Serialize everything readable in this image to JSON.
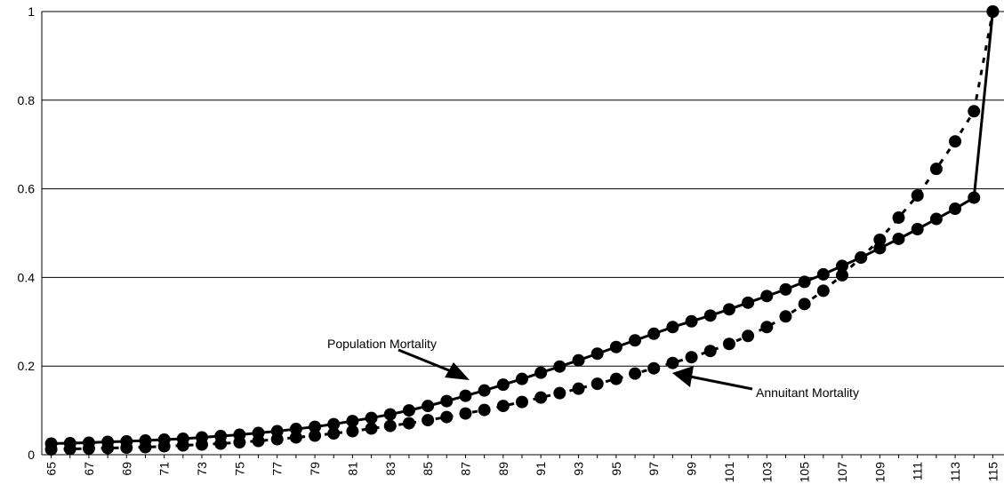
{
  "chart_data": {
    "type": "line",
    "categories": [
      "65",
      null,
      "67",
      null,
      "69",
      null,
      "71",
      null,
      "73",
      null,
      "75",
      null,
      "77",
      null,
      "79",
      null,
      "81",
      null,
      "83",
      null,
      "85",
      null,
      "87",
      null,
      "89",
      null,
      "91",
      null,
      "93",
      null,
      "95",
      null,
      "97",
      null,
      "99",
      null,
      "101",
      null,
      "103",
      null,
      "105",
      null,
      "107",
      null,
      "109",
      null,
      "111",
      null,
      "113",
      null,
      "115"
    ],
    "series": [
      {
        "name": "Population Mortality",
        "color": "#000000",
        "line_style": "solid",
        "values": [
          0.025,
          0.026,
          0.027,
          0.029,
          0.03,
          0.032,
          0.034,
          0.036,
          0.039,
          0.042,
          0.045,
          0.049,
          0.053,
          0.058,
          0.063,
          0.069,
          0.076,
          0.083,
          0.091,
          0.1,
          0.11,
          0.121,
          0.133,
          0.145,
          0.158,
          0.171,
          0.185,
          0.199,
          0.213,
          0.228,
          0.243,
          0.258,
          0.273,
          0.288,
          0.301,
          0.314,
          0.328,
          0.343,
          0.358,
          0.373,
          0.39,
          0.407,
          0.426,
          0.445,
          0.466,
          0.487,
          0.509,
          0.532,
          0.555,
          0.58,
          1
        ]
      },
      {
        "name": "Annuitant Mortality",
        "color": "#000000",
        "line_style": "dotted",
        "values": [
          0.012,
          0.013,
          0.014,
          0.015,
          0.016,
          0.017,
          0.019,
          0.021,
          0.023,
          0.025,
          0.028,
          0.031,
          0.035,
          0.039,
          0.043,
          0.048,
          0.053,
          0.059,
          0.065,
          0.071,
          0.078,
          0.085,
          0.093,
          0.101,
          0.11,
          0.119,
          0.129,
          0.139,
          0.149,
          0.16,
          0.171,
          0.183,
          0.195,
          0.207,
          0.22,
          0.234,
          0.25,
          0.268,
          0.288,
          0.312,
          0.34,
          0.37,
          0.405,
          0.445,
          0.485,
          0.535,
          0.585,
          0.645,
          0.707,
          0.775,
          1
        ]
      }
    ],
    "ylim": [
      0,
      1
    ],
    "yticks": [
      0,
      0.2,
      0.4,
      0.6,
      0.8,
      1
    ],
    "grid": true
  }
}
